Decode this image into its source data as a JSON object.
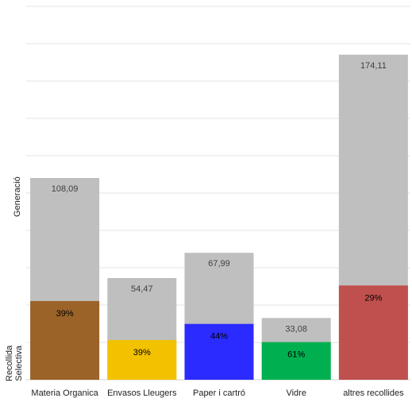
{
  "chart_data": {
    "type": "bar",
    "title": "",
    "xlabel": "",
    "ylabel_top": "Generació",
    "ylabel_bottom": [
      "Recollida",
      "Selectiva"
    ],
    "categories": [
      "Materia Organica",
      "Envasos Lleugers",
      "Paper i cartró",
      "Vidre",
      "altres recollides"
    ],
    "series": [
      {
        "values": [
          108.09,
          54.47,
          67.99,
          33.08,
          174.11
        ],
        "labels": [
          "108,09",
          "54,47",
          "67,99",
          "33,08",
          "174,11"
        ],
        "color": "#bfbfbf"
      },
      {
        "values": [
          0.39,
          0.39,
          0.44,
          0.61,
          0.29
        ],
        "labels": [
          "39%",
          "39%",
          "44%",
          "61%",
          "29%"
        ],
        "colors": [
          "#9b6328",
          "#f2c200",
          "#2b2bff",
          "#00b050",
          "#c0504d"
        ]
      }
    ],
    "ylim": [
      0,
      200
    ],
    "grid": true,
    "legend": "none"
  }
}
